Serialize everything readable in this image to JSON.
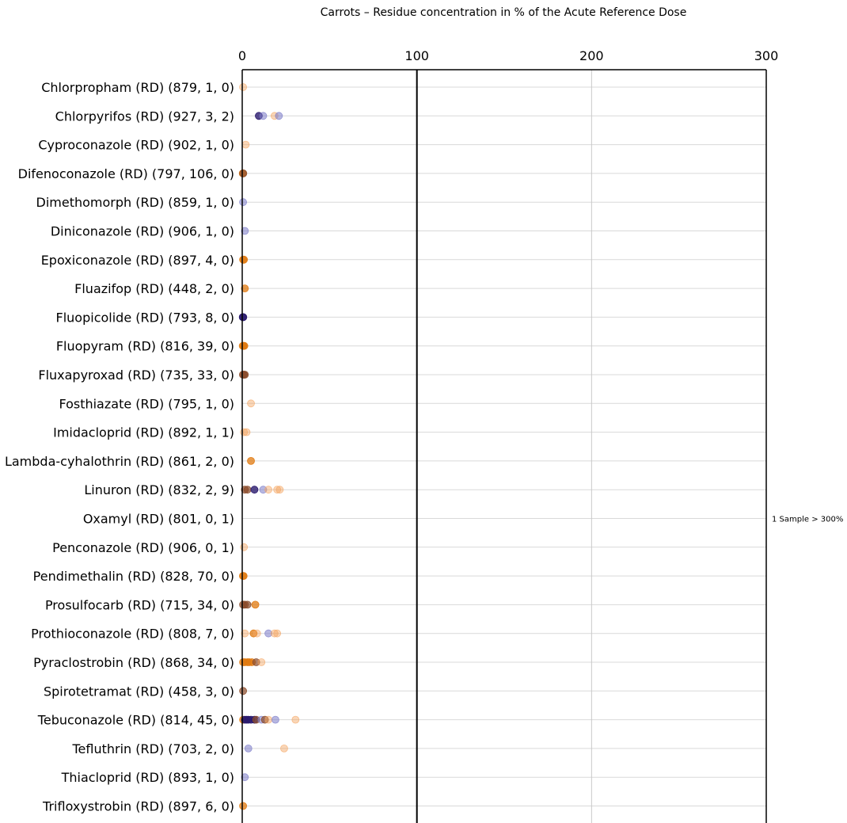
{
  "chart_data": {
    "type": "scatter",
    "title": "Carrots – Residue concentration in % of the Acute Reference Dose",
    "xlim": [
      0,
      300
    ],
    "xticks": [
      0,
      100,
      200,
      300
    ],
    "reference_line": 100,
    "grid": true,
    "colors": {
      "orange_light": "#f4a460",
      "orange": "#e07a10",
      "blue": "#7b7bc8",
      "navy": "#2a1a6e",
      "brown": "#8a4a2a"
    },
    "categories": [
      "Chlorpropham (RD) (879,  1,  0)",
      "Chlorpyrifos (RD) (927,  3,  2)",
      "Cyproconazole (RD) (902,  1,  0)",
      "Difenoconazole (RD) (797,  106,  0)",
      "Dimethomorph (RD) (859,  1,  0)",
      "Diniconazole (RD) (906,  1,  0)",
      "Epoxiconazole (RD) (897,  4,  0)",
      "Fluazifop (RD) (448,  2,  0)",
      "Fluopicolide (RD) (793,  8,  0)",
      "Fluopyram (RD) (816,  39,  0)",
      "Fluxapyroxad (RD) (735,  33,  0)",
      "Fosthiazate (RD) (795,  1,  0)",
      "Imidacloprid (RD) (892,  1,  1)",
      "Lambda-cyhalothrin (RD) (861,  2,  0)",
      "Linuron (RD) (832,  2,  9)",
      "Oxamyl (RD) (801,  0,  1)",
      "Penconazole (RD) (906,  0,  1)",
      "Pendimethalin (RD) (828,  70,  0)",
      "Prosulfocarb (RD) (715,  34,  0)",
      "Prothioconazole (RD) (808,  7,  0)",
      "Pyraclostrobin (RD) (868,  34,  0)",
      "Spirotetramat (RD) (458,  3,  0)",
      "Tebuconazole (RD) (814,  45,  0)",
      "Tefluthrin (RD) (703,  2,  0)",
      "Thiacloprid (RD) (893,  1,  0)",
      "Trifloxystrobin (RD) (897,  6,  0)"
    ],
    "points": [
      [
        [
          0.5,
          "orange_light"
        ]
      ],
      [
        [
          9.5,
          "navy"
        ],
        [
          12,
          "blue"
        ],
        [
          18.5,
          "orange_light"
        ],
        [
          21,
          "blue"
        ]
      ],
      [
        [
          2,
          "orange_light"
        ]
      ],
      [
        [
          0.3,
          "orange"
        ],
        [
          0.6,
          "brown"
        ]
      ],
      [
        [
          0.5,
          "blue"
        ]
      ],
      [
        [
          1.5,
          "blue"
        ]
      ],
      [
        [
          0.5,
          "orange"
        ],
        [
          1,
          "orange"
        ]
      ],
      [
        [
          1.5,
          "orange"
        ]
      ],
      [
        [
          0.3,
          "navy"
        ],
        [
          0.6,
          "navy"
        ]
      ],
      [
        [
          0.3,
          "orange"
        ],
        [
          0.8,
          "orange"
        ],
        [
          1.2,
          "orange"
        ]
      ],
      [
        [
          0.4,
          "brown"
        ],
        [
          1,
          "brown"
        ],
        [
          1.5,
          "brown"
        ]
      ],
      [
        [
          5,
          "orange_light"
        ]
      ],
      [
        [
          1,
          "orange_light"
        ],
        [
          2.5,
          "orange_light"
        ]
      ],
      [
        [
          5,
          "orange"
        ]
      ],
      [
        [
          1.5,
          "brown"
        ],
        [
          3,
          "brown"
        ],
        [
          7,
          "navy"
        ],
        [
          12,
          "blue"
        ],
        [
          15,
          "orange_light"
        ],
        [
          20,
          "orange_light"
        ],
        [
          21.5,
          "orange_light"
        ]
      ],
      [],
      [
        [
          1,
          "orange_light"
        ]
      ],
      [
        [
          0.4,
          "orange"
        ],
        [
          0.8,
          "orange"
        ]
      ],
      [
        [
          0.5,
          "brown"
        ],
        [
          1.5,
          "brown"
        ],
        [
          3,
          "brown"
        ],
        [
          7.5,
          "orange"
        ]
      ],
      [
        [
          1.5,
          "orange_light"
        ],
        [
          6.5,
          "orange"
        ],
        [
          8.5,
          "orange_light"
        ],
        [
          15,
          "blue"
        ],
        [
          18.5,
          "orange_light"
        ],
        [
          20,
          "orange_light"
        ]
      ],
      [
        [
          0.5,
          "orange"
        ],
        [
          1.5,
          "orange"
        ],
        [
          3,
          "orange"
        ],
        [
          4,
          "orange"
        ],
        [
          5.5,
          "orange"
        ],
        [
          8,
          "brown"
        ],
        [
          11,
          "orange_light"
        ]
      ],
      [
        [
          0.5,
          "brown"
        ]
      ],
      [
        [
          0.5,
          "orange"
        ],
        [
          1.5,
          "navy"
        ],
        [
          2.5,
          "navy"
        ],
        [
          3.5,
          "navy"
        ],
        [
          5,
          "navy"
        ],
        [
          7,
          "navy"
        ],
        [
          8,
          "brown"
        ],
        [
          11,
          "blue"
        ],
        [
          13,
          "brown"
        ],
        [
          15,
          "orange_light"
        ],
        [
          19,
          "blue"
        ],
        [
          30.5,
          "orange_light"
        ]
      ],
      [
        [
          3.5,
          "blue"
        ],
        [
          24,
          "orange_light"
        ]
      ],
      [
        [
          1.5,
          "blue"
        ]
      ],
      [
        [
          0.5,
          "orange"
        ]
      ]
    ],
    "annotations": [
      {
        "category_index": 15,
        "text": "1 Sample > 300%"
      }
    ]
  }
}
